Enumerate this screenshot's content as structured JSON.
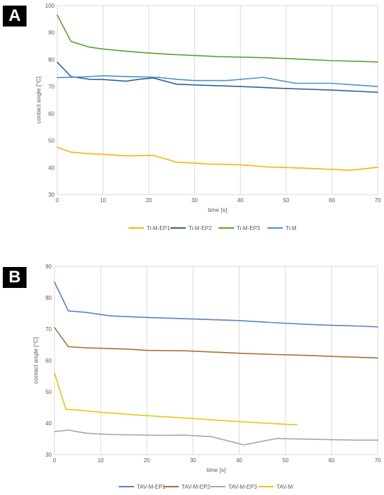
{
  "figure": {
    "panels": [
      {
        "label": "A"
      },
      {
        "label": "B"
      }
    ]
  },
  "chart_data": [
    {
      "type": "line",
      "title": "",
      "xlabel": "time [s]",
      "ylabel": "contact angle [°C]",
      "xlim": [
        0,
        70
      ],
      "ylim": [
        30,
        100
      ],
      "xticks": [
        0,
        10,
        20,
        30,
        40,
        50,
        60,
        70
      ],
      "yticks": [
        30,
        40,
        50,
        60,
        70,
        80,
        90,
        100
      ],
      "grid": "vertical",
      "legend_position": "bottom",
      "series": [
        {
          "name": "Ti-M-EP1",
          "color": "#FFB000",
          "x": [
            0,
            3,
            7,
            10,
            15,
            18,
            21,
            26,
            30,
            33,
            36,
            40,
            46,
            50,
            55,
            60,
            64,
            70
          ],
          "y": [
            47.5,
            45.7,
            45.1,
            44.9,
            44.3,
            44.4,
            44.5,
            42.0,
            41.6,
            41.3,
            41.2,
            41.0,
            40.2,
            40.0,
            39.7,
            39.3,
            39.0,
            40.1
          ]
        },
        {
          "name": "Ti-M-EP2",
          "color": "#2E5F9E",
          "x": [
            0,
            3,
            7,
            10,
            15,
            18,
            21,
            26,
            30,
            40,
            50,
            60,
            70
          ],
          "y": [
            79.0,
            73.7,
            72.7,
            72.6,
            72.0,
            72.7,
            73.2,
            70.9,
            70.6,
            70.0,
            69.3,
            68.7,
            67.9
          ]
        },
        {
          "name": "Ti-M-EP3",
          "color": "#5AA02C",
          "x": [
            0,
            3,
            7,
            10,
            15,
            20,
            25,
            30,
            35,
            40,
            45,
            50,
            55,
            60,
            65,
            70
          ],
          "y": [
            96.5,
            86.7,
            84.6,
            83.9,
            83.1,
            82.4,
            81.9,
            81.5,
            81.1,
            80.9,
            80.7,
            80.4,
            80.0,
            79.6,
            79.4,
            79.1
          ]
        },
        {
          "name": "Ti-M",
          "color": "#4A90C8",
          "x": [
            0,
            6,
            10,
            15,
            20,
            22,
            26,
            30,
            37,
            45,
            52,
            60,
            70
          ],
          "y": [
            73.3,
            73.6,
            74.0,
            73.7,
            73.5,
            73.4,
            72.7,
            72.2,
            72.2,
            73.4,
            71.2,
            71.2,
            70.0
          ]
        }
      ]
    },
    {
      "type": "line",
      "title": "",
      "xlabel": "time [s]",
      "ylabel": "contact angle [°C]",
      "xlim": [
        0,
        70
      ],
      "ylim": [
        30,
        90
      ],
      "xticks": [
        0,
        10,
        20,
        30,
        40,
        50,
        60,
        70
      ],
      "yticks": [
        30,
        40,
        50,
        60,
        70,
        80,
        90
      ],
      "grid": "vertical",
      "legend_position": "bottom",
      "series": [
        {
          "name": "TAV-M-EP1",
          "color": "#5B7FC4",
          "x": [
            0,
            3,
            7,
            12,
            20,
            30,
            40,
            48,
            55,
            60,
            65,
            70
          ],
          "y": [
            85.0,
            75.8,
            75.3,
            74.2,
            73.7,
            73.2,
            72.7,
            72.0,
            71.5,
            71.2,
            71.0,
            70.7
          ]
        },
        {
          "name": "TAV-M-EP2",
          "color": "#A8702A",
          "x": [
            0,
            3,
            7,
            12,
            16,
            20,
            28,
            40,
            48,
            55,
            60,
            70
          ],
          "y": [
            70.5,
            64.4,
            64.0,
            63.8,
            63.6,
            63.2,
            63.1,
            62.3,
            61.9,
            61.6,
            61.3,
            60.8
          ]
        },
        {
          "name": "TAV-M-EP3",
          "color": "#A6A6A6",
          "x": [
            0,
            3,
            7,
            12,
            20,
            23,
            28,
            34,
            41,
            48,
            55,
            65,
            70
          ],
          "y": [
            37.3,
            37.8,
            36.8,
            36.4,
            36.2,
            36.1,
            36.2,
            35.7,
            33.1,
            35.1,
            34.9,
            34.6,
            34.6
          ]
        },
        {
          "name": "TAV-M",
          "color": "#E2C910",
          "x": [
            0,
            2.5,
            5,
            10,
            20,
            30,
            40,
            47,
            52.5
          ],
          "y": [
            56.0,
            44.4,
            44.2,
            43.5,
            42.4,
            41.5,
            40.5,
            39.9,
            39.5
          ]
        }
      ]
    }
  ]
}
